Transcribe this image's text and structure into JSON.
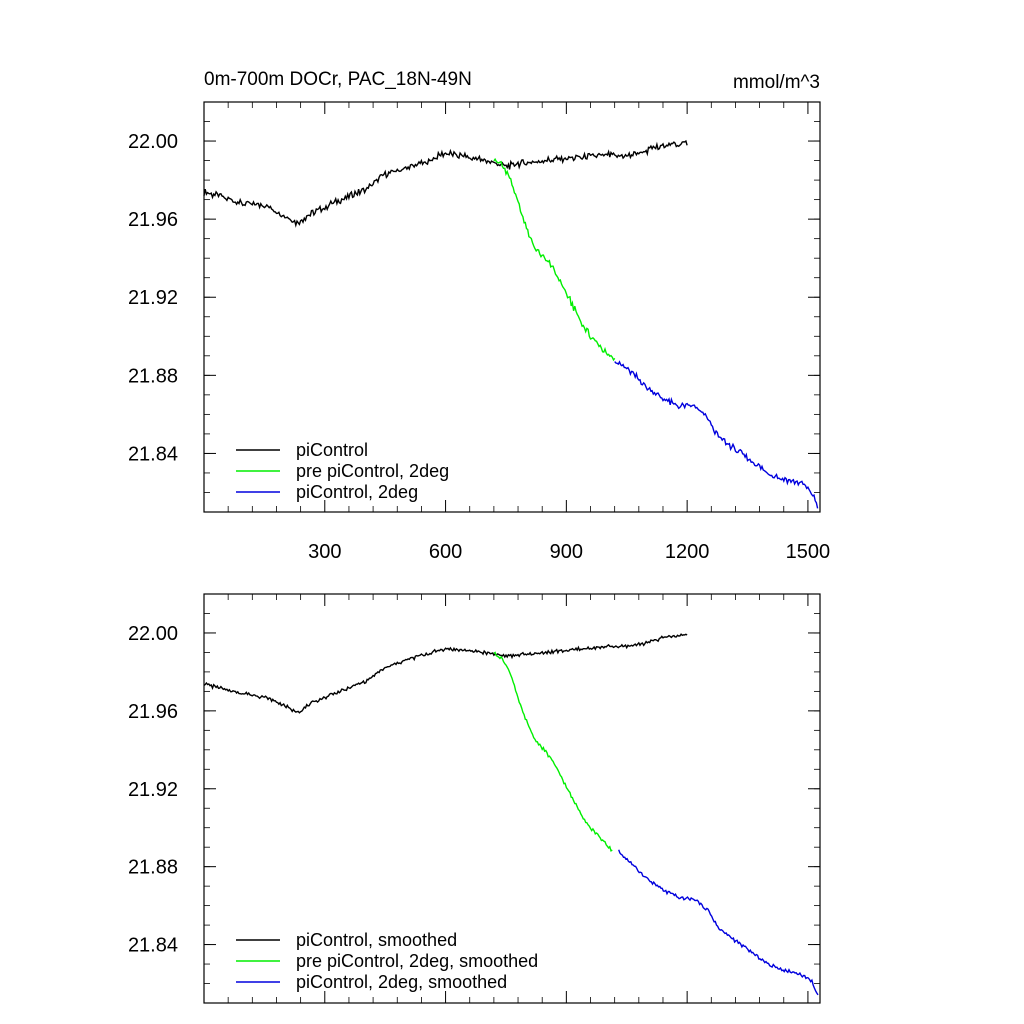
{
  "chart_data": [
    {
      "type": "line",
      "title": "0m-700m DOCr, PAC_18N-49N",
      "units": "mmol/m^3",
      "xlabel": "",
      "ylabel": "",
      "xlim": [
        0,
        1530
      ],
      "ylim": [
        21.81,
        22.02
      ],
      "xticks": [
        300,
        600,
        900,
        1200,
        1500
      ],
      "xtick_labels": [
        "300",
        "600",
        "900",
        "1200",
        "1500"
      ],
      "yticks": [
        21.84,
        21.88,
        21.92,
        21.96,
        22.0
      ],
      "ytick_labels": [
        "21.84",
        "21.88",
        "21.92",
        "21.96",
        "22.00"
      ],
      "legend_position": "bottom-left",
      "series": [
        {
          "name": "piControl",
          "color": "#000000",
          "x": [
            0,
            50,
            100,
            150,
            200,
            230,
            260,
            300,
            350,
            400,
            450,
            500,
            550,
            600,
            650,
            700,
            750,
            800,
            850,
            900,
            950,
            1000,
            1050,
            1100,
            1150,
            1200
          ],
          "y": [
            21.974,
            21.971,
            21.968,
            21.967,
            21.962,
            21.958,
            21.962,
            21.966,
            21.971,
            21.975,
            21.983,
            21.986,
            21.989,
            21.994,
            21.992,
            21.99,
            21.987,
            21.989,
            21.99,
            21.991,
            21.992,
            21.993,
            21.992,
            21.995,
            21.998,
            21.999
          ]
        },
        {
          "name": "pre piControl, 2deg",
          "color": "#00ee00",
          "x": [
            720,
            740,
            760,
            780,
            800,
            820,
            840,
            860,
            880,
            900,
            920,
            940,
            960,
            980,
            1000,
            1020
          ],
          "y": [
            21.991,
            21.988,
            21.981,
            21.968,
            21.956,
            21.946,
            21.941,
            21.937,
            21.93,
            21.922,
            21.914,
            21.906,
            21.9,
            21.896,
            21.891,
            21.888
          ]
        },
        {
          "name": "piControl, 2deg",
          "color": "#0000dd",
          "x": [
            1020,
            1060,
            1100,
            1140,
            1180,
            1220,
            1250,
            1280,
            1320,
            1360,
            1400,
            1440,
            1480,
            1510,
            1525
          ],
          "y": [
            21.888,
            21.882,
            21.874,
            21.868,
            21.864,
            21.864,
            21.858,
            21.848,
            21.842,
            21.836,
            21.83,
            21.827,
            21.825,
            21.82,
            21.812
          ]
        }
      ]
    },
    {
      "type": "line",
      "title": "",
      "xlabel": "",
      "ylabel": "",
      "xlim": [
        0,
        1530
      ],
      "ylim": [
        21.81,
        22.02
      ],
      "xticks": [
        300,
        600,
        900,
        1200,
        1500
      ],
      "yticks": [
        21.84,
        21.88,
        21.92,
        21.96,
        22.0
      ],
      "ytick_labels": [
        "21.84",
        "21.88",
        "21.92",
        "21.96",
        "22.00"
      ],
      "legend_position": "bottom-left",
      "series": [
        {
          "name": "piControl, smoothed",
          "color": "#000000",
          "x": [
            0,
            50,
            100,
            150,
            200,
            220,
            240,
            260,
            300,
            350,
            400,
            450,
            500,
            550,
            600,
            650,
            700,
            750,
            800,
            850,
            900,
            950,
            1000,
            1050,
            1100,
            1150,
            1200
          ],
          "y": [
            21.974,
            21.971,
            21.969,
            21.967,
            21.963,
            21.96,
            21.96,
            21.963,
            21.967,
            21.971,
            21.975,
            21.982,
            21.986,
            21.989,
            21.992,
            21.991,
            21.99,
            21.988,
            21.989,
            21.99,
            21.991,
            21.992,
            21.993,
            21.993,
            21.995,
            21.998,
            21.999
          ]
        },
        {
          "name": "pre piControl, 2deg, smoothed",
          "color": "#00ee00",
          "x": [
            720,
            740,
            760,
            780,
            800,
            820,
            840,
            860,
            880,
            900,
            920,
            940,
            960,
            980,
            1000,
            1015
          ],
          "y": [
            21.99,
            21.987,
            21.98,
            21.966,
            21.955,
            21.946,
            21.941,
            21.936,
            21.929,
            21.921,
            21.913,
            21.906,
            21.9,
            21.896,
            21.891,
            21.888
          ]
        },
        {
          "name": "piControl, 2deg, smoothed",
          "color": "#0000dd",
          "x": [
            1030,
            1060,
            1100,
            1140,
            1180,
            1220,
            1250,
            1280,
            1320,
            1360,
            1400,
            1440,
            1480,
            1510,
            1525
          ],
          "y": [
            21.888,
            21.882,
            21.874,
            21.868,
            21.864,
            21.863,
            21.858,
            21.848,
            21.842,
            21.836,
            21.83,
            21.827,
            21.825,
            21.821,
            21.814
          ]
        }
      ]
    }
  ]
}
